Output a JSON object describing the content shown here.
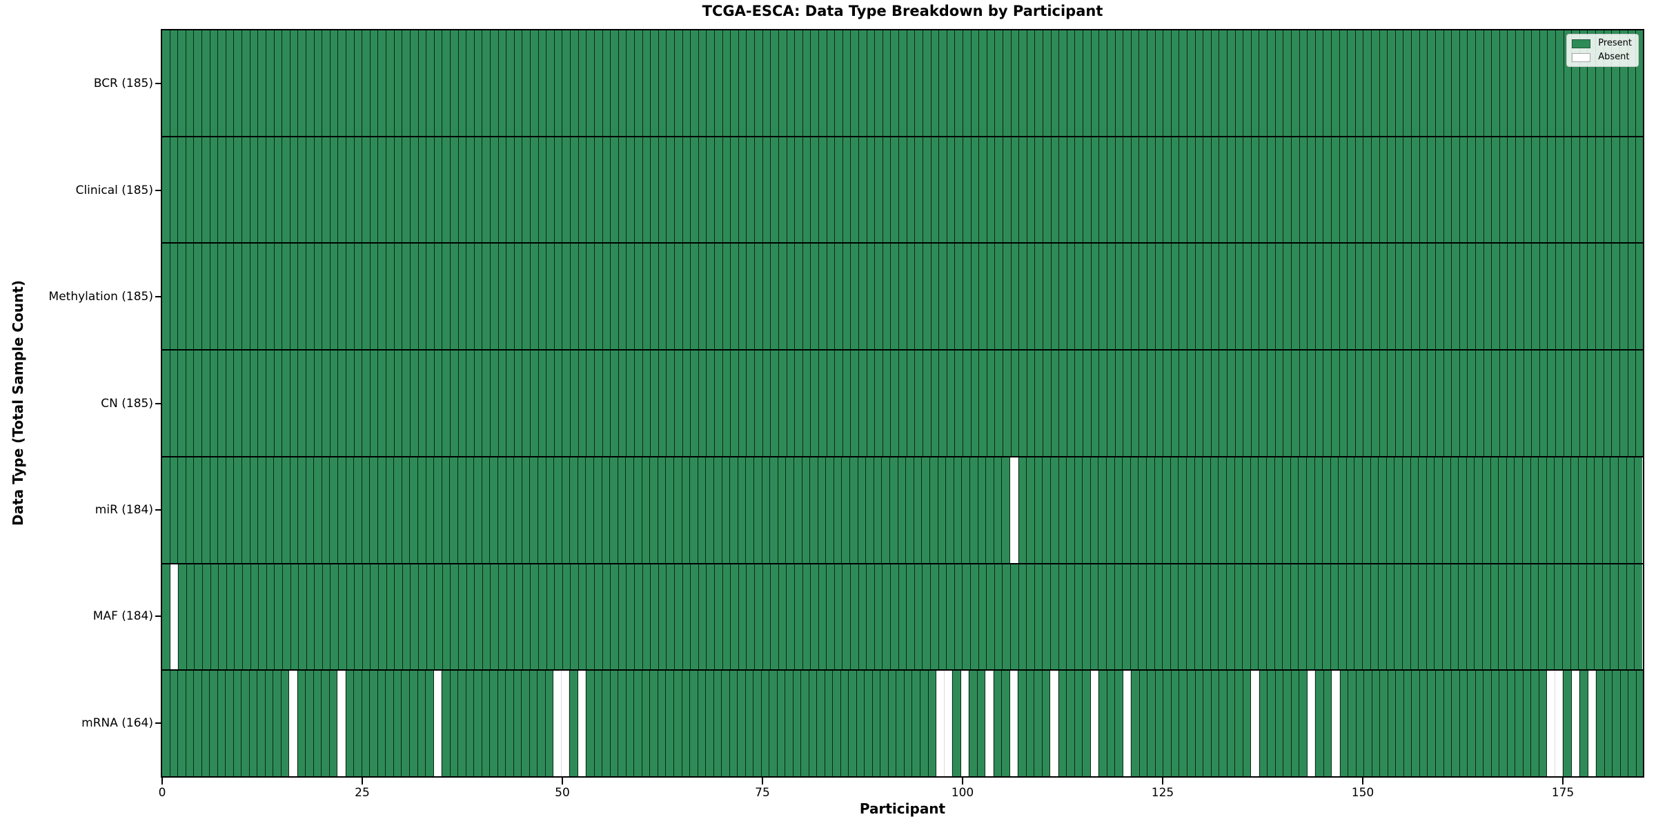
{
  "figure": {
    "title": "TCGA-ESCA: Data Type Breakdown by Participant",
    "xlabel": "Participant",
    "ylabel": "Data Type (Total Sample Count)"
  },
  "legend": {
    "items": [
      {
        "label": "Present",
        "color": "#2e8b57"
      },
      {
        "label": "Absent",
        "color": "#ffffff"
      }
    ]
  },
  "chart_data": {
    "type": "heatmap",
    "title": "TCGA-ESCA: Data Type Breakdown by Participant",
    "xlabel": "Participant",
    "ylabel": "Data Type (Total Sample Count)",
    "n_participants": 185,
    "x_ticks": [
      0,
      25,
      50,
      75,
      100,
      125,
      150,
      175
    ],
    "xlim": [
      0,
      185
    ],
    "grid": false,
    "legend_position": "upper right",
    "colors": {
      "present": "#2e8b57",
      "absent": "#ffffff",
      "bar_edge": "#1f1f1f",
      "row_divider": "#000000"
    },
    "rows": [
      {
        "data_type": "BCR",
        "label": "BCR (185)",
        "total": 185,
        "absent_participants": []
      },
      {
        "data_type": "Clinical",
        "label": "Clinical (185)",
        "total": 185,
        "absent_participants": []
      },
      {
        "data_type": "Methylation",
        "label": "Methylation (185)",
        "total": 185,
        "absent_participants": []
      },
      {
        "data_type": "CN",
        "label": "CN (185)",
        "total": 185,
        "absent_participants": []
      },
      {
        "data_type": "miR",
        "label": "miR (184)",
        "total": 184,
        "absent_participants": [
          106
        ]
      },
      {
        "data_type": "MAF",
        "label": "MAF (184)",
        "total": 184,
        "absent_participants": [
          1
        ]
      },
      {
        "data_type": "mRNA",
        "label": "mRNA (164)",
        "total": 164,
        "absent_participants": [
          16,
          22,
          34,
          49,
          50,
          52,
          97,
          98,
          100,
          103,
          106,
          111,
          116,
          120,
          136,
          143,
          146,
          173,
          174,
          176,
          178
        ]
      }
    ]
  }
}
